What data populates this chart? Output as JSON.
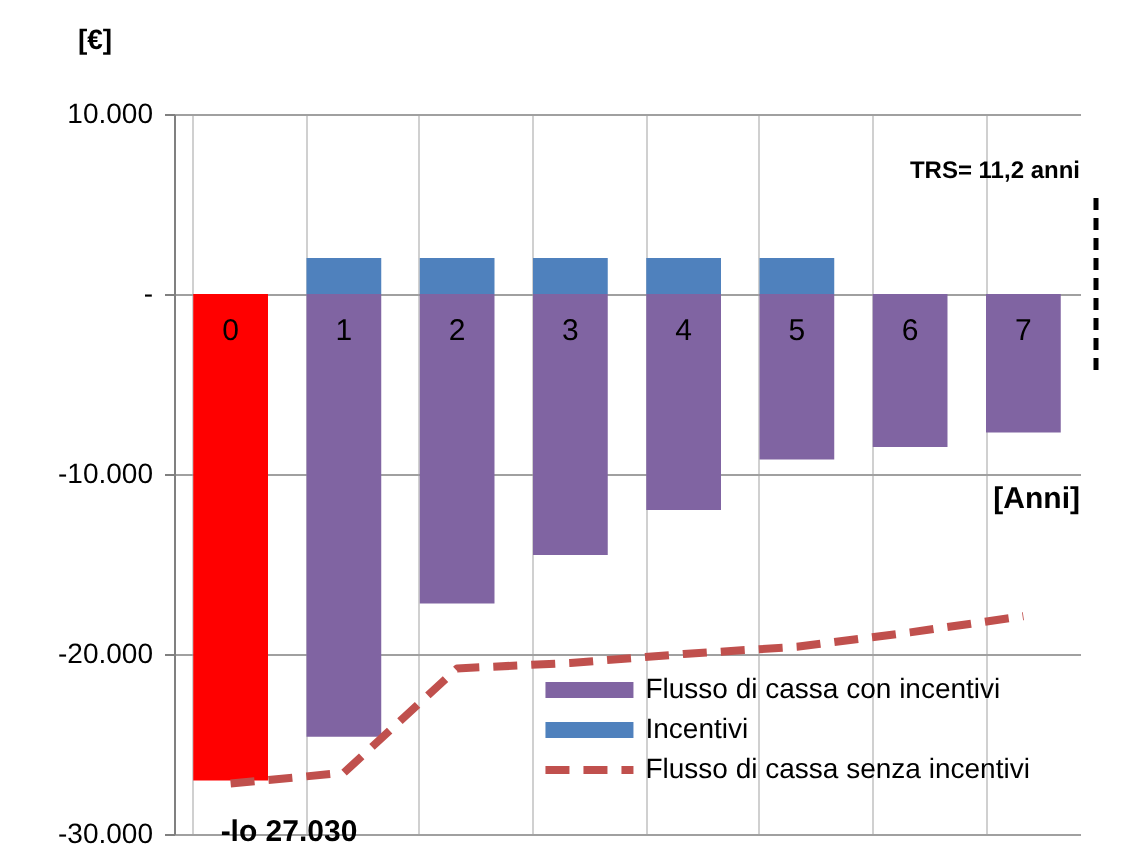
{
  "chart_data": {
    "type": "bar",
    "stacked": true,
    "ylabel": "[€]",
    "xlabel": "[Anni]",
    "categories": [
      "0",
      "1",
      "2",
      "3",
      "4",
      "5",
      "6",
      "7"
    ],
    "series": [
      {
        "name": "Flusso di cassa con incentivi",
        "color": "#8064a2",
        "colors": [
          "#ff0000",
          "#8064a2",
          "#8064a2",
          "#8064a2",
          "#8064a2",
          "#8064a2",
          "#8064a2",
          "#8064a2"
        ],
        "values": [
          -27030,
          -24600,
          -17200,
          -14500,
          -12000,
          -9200,
          -8500,
          -7700
        ]
      },
      {
        "name": "Incentivi",
        "color": "#4f81bd",
        "values": [
          null,
          2000,
          2000,
          2000,
          2000,
          2000,
          null,
          null
        ]
      },
      {
        "name": "Flusso di cassa senza incentivi",
        "type": "line",
        "color": "#c0504d",
        "line_style": "dashed",
        "values": [
          -27200,
          -26600,
          -20800,
          -20500,
          -20000,
          -19600,
          -18800,
          -17900
        ]
      }
    ],
    "ylim": [
      -30000,
      10000
    ],
    "yticks": [
      {
        "value": 10000,
        "label": "10.000"
      },
      {
        "value": 0,
        "label": "-"
      },
      {
        "value": -10000,
        "label": "-10.000"
      },
      {
        "value": -20000,
        "label": "-20.000"
      },
      {
        "value": -30000,
        "label": "-30.000"
      }
    ],
    "grid": true,
    "legend": "bottom right",
    "annotations": [
      {
        "text": "-lo 27.030",
        "x": "0",
        "y": -27030
      },
      "TRS= 11,2 anni"
    ]
  }
}
